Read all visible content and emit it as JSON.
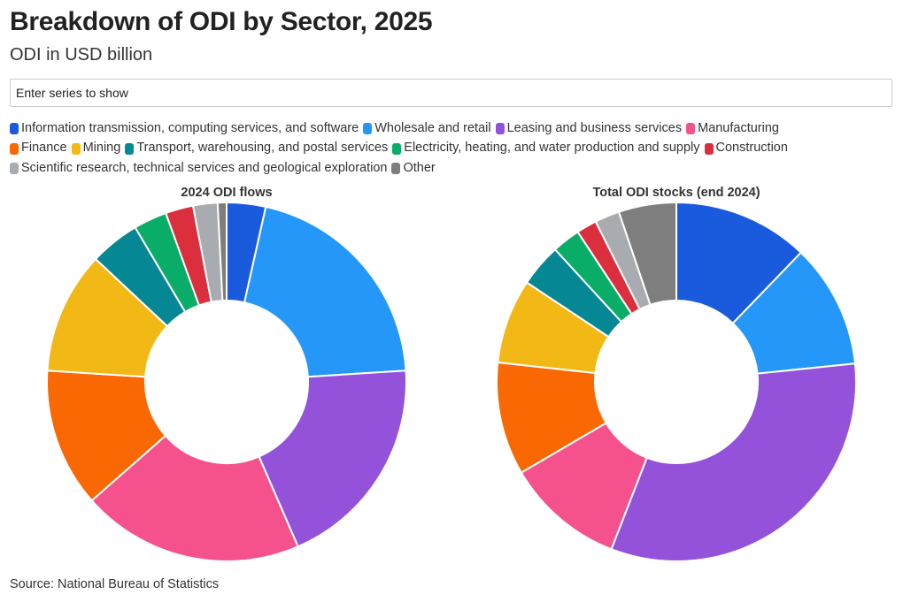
{
  "title": "Breakdown of ODI by Sector, 2025",
  "subtitle": "ODI in USD billion",
  "search": {
    "placeholder": "Enter series to show"
  },
  "source": "Source: National Bureau of Statistics",
  "legend": [
    {
      "label": "Information transmission, computing services, and software",
      "color": "#1a5bde"
    },
    {
      "label": "Wholesale and retail",
      "color": "#2597f9"
    },
    {
      "label": "Leasing and business services",
      "color": "#9452db"
    },
    {
      "label": "Manufacturing",
      "color": "#f5518c"
    },
    {
      "label": "Finance",
      "color": "#f96802"
    },
    {
      "label": "Mining",
      "color": "#f2b816"
    },
    {
      "label": "Transport, warehousing, and postal services",
      "color": "#068794"
    },
    {
      "label": "Electricity, heating, and water production and supply",
      "color": "#0aad67"
    },
    {
      "label": "Construction",
      "color": "#dc2f3d"
    },
    {
      "label": "Scientific research, technical services and geological exploration",
      "color": "#a8abb0"
    },
    {
      "label": "Other",
      "color": "#7e7e7e"
    }
  ],
  "chart_data": [
    {
      "type": "pie",
      "title": "2024 ODI flows",
      "categories": [
        "Information transmission, computing services, and software",
        "Wholesale and retail",
        "Leasing and business services",
        "Manufacturing",
        "Finance",
        "Mining",
        "Transport, warehousing, and postal services",
        "Electricity, heating, and water production and supply",
        "Construction",
        "Scientific research, technical services and geological exploration",
        "Other"
      ],
      "values": [
        3.5,
        20.5,
        19.5,
        20,
        12.5,
        11,
        4.5,
        3,
        2.5,
        2.2,
        0.8
      ]
    },
    {
      "type": "pie",
      "title": "Total ODI stocks (end 2024)",
      "categories": [
        "Information transmission, computing services, and software",
        "Wholesale and retail",
        "Leasing and business services",
        "Manufacturing",
        "Finance",
        "Mining",
        "Transport, warehousing, and postal services",
        "Electricity, heating, and water production and supply",
        "Construction",
        "Scientific research, technical services and geological exploration",
        "Other"
      ],
      "values": [
        12,
        11,
        32,
        10.5,
        10,
        7.5,
        3.8,
        2.5,
        1.8,
        2.2,
        5.1
      ]
    }
  ]
}
